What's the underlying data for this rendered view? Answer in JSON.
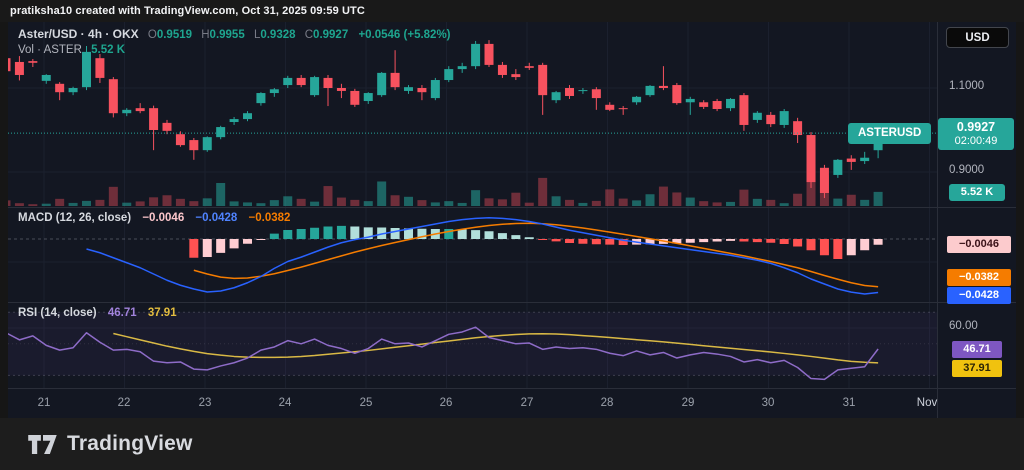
{
  "header": {
    "attribution": "pratiksha10 created with TradingView.com, Oct 31, 2025 09:59 UTC"
  },
  "symbol_legend": {
    "title": "Aster/USD · 4h · OKX",
    "o_label": "O",
    "o_value": "0.9519",
    "h_label": "H",
    "h_value": "0.9955",
    "l_label": "L",
    "l_value": "0.9328",
    "c_label": "C",
    "c_value": "0.9927",
    "change": "+0.0546 (+5.82%)"
  },
  "volume_legend": {
    "label": "Vol · ASTER",
    "value": "5.52 K"
  },
  "macd_legend": {
    "title": "MACD (12, 26, close)",
    "hist_value": "−0.0046",
    "macd_value": "−0.0428",
    "signal_value": "−0.0382"
  },
  "rsi_legend": {
    "title": "RSI (14, close)",
    "rsi_value": "46.71",
    "ma_value": "37.91"
  },
  "price_axis": {
    "currency": "USD",
    "tick_upper": "1.1000",
    "tick_lower": "0.9000",
    "symbol_tag": "ASTERUSD",
    "last_price": "0.9927",
    "countdown": "02:00:49",
    "volume_value": "5.52 K",
    "macd_hist_label": "−0.0046",
    "macd_signal_label": "−0.0382",
    "macd_line_label": "−0.0428",
    "rsi_tick": "60.00",
    "rsi_label": "46.71",
    "rsi_ma_label": "37.91"
  },
  "time_axis": {
    "labels": [
      "21",
      "22",
      "23",
      "24",
      "25",
      "26",
      "27",
      "28",
      "29",
      "30",
      "31",
      "Nov"
    ]
  },
  "footer": {
    "brand": "TradingView"
  },
  "colors": {
    "background": "#131722",
    "up": "#26a69a",
    "down": "#f7525f",
    "vol_up": "rgba(38,166,154,0.55)",
    "vol_down": "rgba(247,82,95,0.40)",
    "macd_line": "#2962ff",
    "signal_line": "#f57c00",
    "hist_above_rising": "#26a69a",
    "hist_above_falling": "#b2dfdb",
    "hist_below_falling": "#ff5252",
    "hist_below_rising": "#ffcdd2",
    "rsi_line": "#8e6cc8",
    "rsi_ma_line": "#d9b945",
    "grid": "#1b202e",
    "separator": "#2a2e39",
    "last_price_line": "#26a69a"
  },
  "chart_data": [
    {
      "type": "candlestick",
      "title": "Aster/USD · 4h · OKX",
      "interval": "4h",
      "day_labels": [
        "21",
        "22",
        "23",
        "24",
        "25",
        "26",
        "27",
        "28",
        "29",
        "30",
        "31",
        "Nov"
      ],
      "y_ticks": [
        0.9,
        1.1
      ],
      "last_price": 0.9927,
      "ohlc": [
        [
          1.171,
          1.19,
          1.124,
          1.14
        ],
        [
          1.162,
          1.176,
          1.118,
          1.131
        ],
        [
          1.164,
          1.169,
          1.15,
          1.16
        ],
        [
          1.117,
          1.133,
          1.11,
          1.131
        ],
        [
          1.11,
          1.114,
          1.071,
          1.09
        ],
        [
          1.09,
          1.103,
          1.083,
          1.1
        ],
        [
          1.102,
          1.2,
          1.095,
          1.186
        ],
        [
          1.171,
          1.181,
          1.112,
          1.124
        ],
        [
          1.121,
          1.126,
          1.03,
          1.04
        ],
        [
          1.04,
          1.052,
          1.033,
          1.048
        ],
        [
          1.052,
          1.064,
          1.04,
          1.045
        ],
        [
          1.052,
          1.058,
          0.952,
          1.0
        ],
        [
          1.017,
          1.024,
          0.99,
          0.998
        ],
        [
          0.99,
          0.997,
          0.96,
          0.964
        ],
        [
          0.976,
          0.981,
          0.929,
          0.952
        ],
        [
          0.952,
          0.985,
          0.948,
          0.983
        ],
        [
          0.983,
          1.01,
          0.978,
          1.007
        ],
        [
          1.019,
          1.031,
          1.012,
          1.026
        ],
        [
          1.026,
          1.045,
          1.021,
          1.04
        ],
        [
          1.064,
          1.09,
          1.058,
          1.088
        ],
        [
          1.088,
          1.1,
          1.079,
          1.097
        ],
        [
          1.107,
          1.129,
          1.1,
          1.124
        ],
        [
          1.124,
          1.131,
          1.102,
          1.107
        ],
        [
          1.083,
          1.129,
          1.079,
          1.126
        ],
        [
          1.124,
          1.131,
          1.057,
          1.1
        ],
        [
          1.1,
          1.11,
          1.076,
          1.093
        ],
        [
          1.093,
          1.098,
          1.055,
          1.06
        ],
        [
          1.069,
          1.09,
          1.062,
          1.088
        ],
        [
          1.083,
          1.138,
          1.079,
          1.136
        ],
        [
          1.136,
          1.19,
          1.095,
          1.102
        ],
        [
          1.093,
          1.107,
          1.086,
          1.102
        ],
        [
          1.1,
          1.107,
          1.071,
          1.09
        ],
        [
          1.076,
          1.124,
          1.071,
          1.119
        ],
        [
          1.119,
          1.152,
          1.114,
          1.145
        ],
        [
          1.145,
          1.16,
          1.136,
          1.152
        ],
        [
          1.152,
          1.212,
          1.145,
          1.205
        ],
        [
          1.205,
          1.214,
          1.15,
          1.155
        ],
        [
          1.155,
          1.162,
          1.124,
          1.131
        ],
        [
          1.133,
          1.145,
          1.119,
          1.126
        ],
        [
          1.152,
          1.16,
          1.143,
          1.148
        ],
        [
          1.155,
          1.16,
          1.036,
          1.083
        ],
        [
          1.071,
          1.093,
          1.064,
          1.09
        ],
        [
          1.1,
          1.107,
          1.074,
          1.081
        ],
        [
          1.093,
          1.1,
          1.086,
          1.095
        ],
        [
          1.097,
          1.102,
          1.048,
          1.076
        ],
        [
          1.06,
          1.066,
          1.045,
          1.048
        ],
        [
          1.052,
          1.057,
          1.036,
          1.05
        ],
        [
          1.066,
          1.081,
          1.06,
          1.079
        ],
        [
          1.083,
          1.107,
          1.079,
          1.105
        ],
        [
          1.105,
          1.152,
          1.095,
          1.1
        ],
        [
          1.107,
          1.112,
          1.06,
          1.064
        ],
        [
          1.066,
          1.079,
          1.036,
          1.074
        ],
        [
          1.066,
          1.071,
          1.05,
          1.055
        ],
        [
          1.069,
          1.074,
          1.045,
          1.05
        ],
        [
          1.052,
          1.076,
          1.045,
          1.074
        ],
        [
          1.083,
          1.088,
          0.998,
          1.012
        ],
        [
          1.024,
          1.045,
          1.017,
          1.041
        ],
        [
          1.036,
          1.043,
          1.007,
          1.014
        ],
        [
          1.012,
          1.05,
          1.005,
          1.045
        ],
        [
          1.021,
          1.029,
          0.969,
          0.988
        ],
        [
          0.988,
          0.995,
          0.862,
          0.876
        ],
        [
          0.91,
          0.917,
          0.838,
          0.85
        ],
        [
          0.893,
          0.931,
          0.886,
          0.929
        ],
        [
          0.932,
          0.94,
          0.905,
          0.924
        ],
        [
          0.926,
          0.948,
          0.919,
          0.934
        ],
        [
          0.9519,
          0.9955,
          0.9328,
          0.9927
        ]
      ],
      "volume_k": [
        2.2,
        1.1,
        0.7,
        0.9,
        2.8,
        1.2,
        2.0,
        2.4,
        7.5,
        1.3,
        1.8,
        3.4,
        4.2,
        2.8,
        1.9,
        3.0,
        9.0,
        1.8,
        1.4,
        1.1,
        2.3,
        3.8,
        2.8,
        1.7,
        7.8,
        3.3,
        2.4,
        1.9,
        9.6,
        4.2,
        3.6,
        2.3,
        1.4,
        1.9,
        1.2,
        6.2,
        3.0,
        2.6,
        5.2,
        1.3,
        11.0,
        3.8,
        2.4,
        1.2,
        2.0,
        6.5,
        2.9,
        2.2,
        4.6,
        7.6,
        5.3,
        3.3,
        1.9,
        1.4,
        1.6,
        6.4,
        2.8,
        2.4,
        1.1,
        4.8,
        16.5,
        12.0,
        2.9,
        4.4,
        2.4,
        5.52
      ],
      "last_volume_k": 5.52
    },
    {
      "type": "macd",
      "params": [
        12,
        26,
        "close"
      ],
      "values": {
        "hist": -0.0046,
        "macd": -0.0428,
        "signal": -0.0382
      },
      "hist": [
        null,
        null,
        null,
        null,
        null,
        null,
        null,
        null,
        null,
        null,
        null,
        null,
        null,
        null,
        -0.015,
        -0.0144,
        -0.0111,
        -0.0075,
        -0.0038,
        -0.0002,
        0.0043,
        0.0072,
        0.008,
        0.009,
        0.01,
        0.0105,
        0.01,
        0.0093,
        0.0092,
        0.0088,
        0.0085,
        0.0082,
        0.008,
        0.008,
        0.0077,
        0.0071,
        0.0062,
        0.0047,
        0.0031,
        0.0014,
        -0.0002,
        -0.0019,
        -0.0032,
        -0.0038,
        -0.0042,
        -0.0045,
        -0.0048,
        -0.0045,
        -0.0042,
        -0.0039,
        -0.0035,
        -0.003,
        -0.0025,
        -0.002,
        -0.0015,
        -0.002,
        -0.0025,
        -0.003,
        -0.004,
        -0.006,
        -0.009,
        -0.013,
        -0.016,
        -0.013,
        -0.009,
        -0.0046
      ],
      "macd": [
        null,
        null,
        null,
        null,
        null,
        null,
        -0.008,
        -0.011,
        -0.015,
        -0.019,
        -0.023,
        -0.028,
        -0.033,
        -0.037,
        -0.04,
        -0.0424,
        -0.0416,
        -0.039,
        -0.035,
        -0.03,
        -0.0235,
        -0.018,
        -0.0145,
        -0.0105,
        -0.0065,
        -0.003,
        -0.0005,
        0.0015,
        0.004,
        0.006,
        0.008,
        0.01,
        0.012,
        0.014,
        0.0155,
        0.0165,
        0.017,
        0.0165,
        0.0155,
        0.014,
        0.012,
        0.0095,
        0.007,
        0.005,
        0.003,
        0.001,
        -0.001,
        -0.0025,
        -0.004,
        -0.0055,
        -0.007,
        -0.0085,
        -0.01,
        -0.0115,
        -0.013,
        -0.015,
        -0.017,
        -0.0195,
        -0.023,
        -0.027,
        -0.032,
        -0.036,
        -0.04,
        -0.0425,
        -0.044,
        -0.0428
      ],
      "signal": [
        null,
        null,
        null,
        null,
        null,
        null,
        null,
        null,
        null,
        null,
        null,
        null,
        null,
        null,
        -0.025,
        -0.028,
        -0.0305,
        -0.0315,
        -0.0312,
        -0.0298,
        -0.0278,
        -0.0252,
        -0.0225,
        -0.0195,
        -0.0165,
        -0.0135,
        -0.0105,
        -0.0078,
        -0.0052,
        -0.0028,
        -0.0005,
        0.0018,
        0.004,
        0.006,
        0.0078,
        0.0094,
        0.0108,
        0.0118,
        0.0124,
        0.0126,
        0.0122,
        0.0114,
        0.0102,
        0.0088,
        0.0072,
        0.0055,
        0.0038,
        0.002,
        0.0002,
        -0.0016,
        -0.0035,
        -0.0055,
        -0.0075,
        -0.0095,
        -0.0115,
        -0.0135,
        -0.0158,
        -0.018,
        -0.0205,
        -0.023,
        -0.026,
        -0.0292,
        -0.0322,
        -0.035,
        -0.0372,
        -0.0382
      ]
    },
    {
      "type": "rsi",
      "params": [
        14,
        "close"
      ],
      "values": {
        "rsi": 46.71,
        "ma": 37.91
      },
      "bands": [
        70,
        50,
        30
      ],
      "grid_value": 60,
      "rsi": [
        57,
        52.5,
        55,
        49,
        46,
        47.5,
        57,
        51,
        46,
        46.5,
        45,
        39,
        38,
        38.5,
        34,
        33.5,
        36,
        38,
        41,
        46,
        48,
        52,
        50,
        53,
        49,
        47,
        44,
        47,
        53,
        50,
        50.5,
        48,
        52,
        56,
        57.5,
        60.5,
        54,
        52,
        50,
        50.5,
        46.5,
        48,
        47,
        47.5,
        46.5,
        44,
        42.5,
        45.5,
        43,
        44.5,
        41,
        43,
        44.5,
        43.5,
        42,
        38.5,
        40,
        38,
        39.5,
        35,
        28,
        27.5,
        33.5,
        34.5,
        35.5,
        46.71
      ],
      "ma": [
        null,
        null,
        null,
        null,
        null,
        null,
        null,
        null,
        56.5,
        54.5,
        52.5,
        50.5,
        48.5,
        46.8,
        45.2,
        43.8,
        42.8,
        42.0,
        41.6,
        41.4,
        41.4,
        41.6,
        42.0,
        42.6,
        43.4,
        44.2,
        45.0,
        45.8,
        46.8,
        47.8,
        48.8,
        49.8,
        50.8,
        51.8,
        52.8,
        53.8,
        54.6,
        55.3,
        55.9,
        56.3,
        56.4,
        56.2,
        55.8,
        55.2,
        54.6,
        54.0,
        53.3,
        52.6,
        51.9,
        51.2,
        50.4,
        49.6,
        48.8,
        48.0,
        47.2,
        46.4,
        45.6,
        44.8,
        43.9,
        43.0,
        42.0,
        40.9,
        39.8,
        38.9,
        38.3,
        37.91
      ]
    }
  ]
}
